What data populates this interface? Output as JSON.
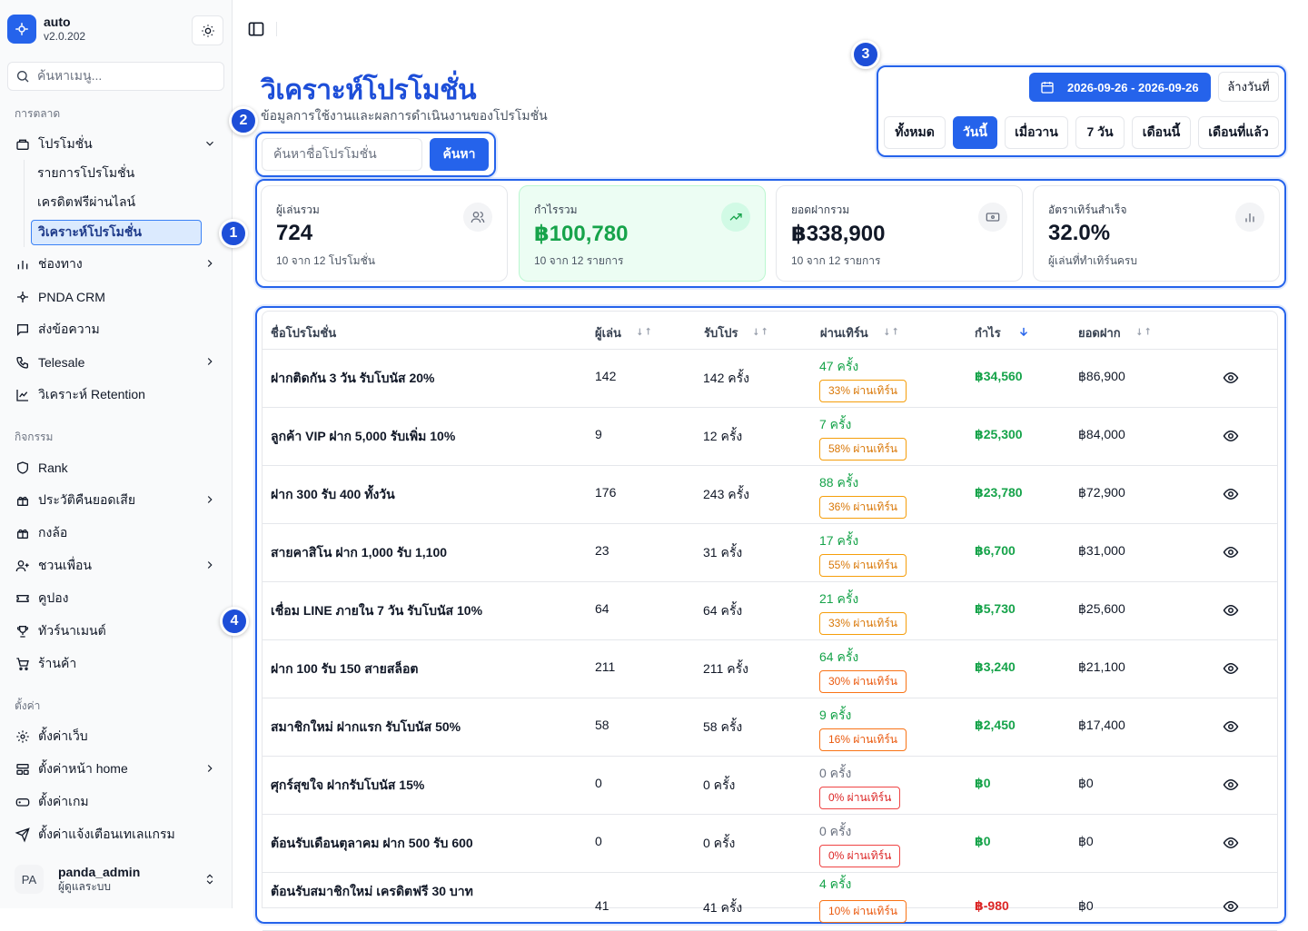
{
  "app": {
    "name": "auto",
    "version": "v2.0.202"
  },
  "sidebar": {
    "search_placeholder": "ค้นหาเมนู...",
    "group_marketing": "การตลาด",
    "group_activity": "กิจกรรม",
    "group_settings": "ตั้งค่า",
    "promo": {
      "label": "โปรโมชั่น",
      "children": [
        "รายการโปรโมชั่น",
        "เครดิตฟรีผ่านไลน์",
        "วิเคราะห์โปรโมชั่น"
      ]
    },
    "marketing_items": [
      "ช่องทาง",
      "PNDA CRM",
      "ส่งข้อความ",
      "Telesale",
      "วิเคราะห์ Retention"
    ],
    "activity_items": [
      "Rank",
      "ประวัติคืนยอดเสีย",
      "กงล้อ",
      "ชวนเพื่อน",
      "คูปอง",
      "ทัวร์นาเมนต์",
      "ร้านค้า"
    ],
    "settings_items": [
      "ตั้งค่าเว็บ",
      "ตั้งค่าหน้า home",
      "ตั้งค่าเกม",
      "ตั้งค่าแจ้งเตือนเทเลแกรม"
    ],
    "user": {
      "initials": "PA",
      "name": "panda_admin",
      "role": "ผู้ดูแลระบบ"
    }
  },
  "header": {
    "title": "วิเคราะห์โปรโมชั่น",
    "subtitle": "ข้อมูลการใช้งานและผลการดำเนินงานของโปรโมชั่น"
  },
  "annotations": {
    "b1": "1",
    "b2": "2",
    "b3": "3",
    "b4": "4"
  },
  "search": {
    "placeholder": "ค้นหาชื่อโปรโมชั่น",
    "button": "ค้นหา"
  },
  "date_filter": {
    "range": "2026-09-26 - 2026-09-26",
    "clear": "ล้างวันที่",
    "ranges": [
      "ทั้งหมด",
      "วันนี้",
      "เมื่อวาน",
      "7 วัน",
      "เดือนนี้",
      "เดือนที่แล้ว"
    ],
    "active": "วันนี้"
  },
  "stats": [
    {
      "label": "ผู้เล่นรวม",
      "value": "724",
      "sub": "10 จาก 12 โปรโมชั่น",
      "icon": "users-icon"
    },
    {
      "label": "กำไรรวม",
      "value": "฿100,780",
      "sub": "10 จาก 12 รายการ",
      "icon": "trending-up-icon"
    },
    {
      "label": "ยอดฝากรวม",
      "value": "฿338,900",
      "sub": "10 จาก 12 รายการ",
      "icon": "banknote-icon"
    },
    {
      "label": "อัตราเทิร์นสำเร็จ",
      "value": "32.0%",
      "sub": "ผู้เล่นที่ทำเทิร์นครบ",
      "icon": "bar-chart-icon"
    }
  ],
  "table": {
    "columns": [
      "ชื่อโปรโมชั่น",
      "ผู้เล่น",
      "รับโปร",
      "ผ่านเทิร์น",
      "กำไร",
      "ยอดฝาก"
    ],
    "rows": [
      {
        "name": "ฝากติดกัน 3 วัน รับโบนัส 20%",
        "players": "142",
        "claims": "142 ครั้ง",
        "pass": "47 ครั้ง",
        "pass_pct": "33% ผ่านเทิร์น",
        "profit": "฿34,560",
        "deposit": "฿86,900"
      },
      {
        "name": "ลูกค้า VIP ฝาก 5,000 รับเพิ่ม 10%",
        "players": "9",
        "claims": "12 ครั้ง",
        "pass": "7 ครั้ง",
        "pass_pct": "58% ผ่านเทิร์น",
        "profit": "฿25,300",
        "deposit": "฿84,000"
      },
      {
        "name": "ฝาก 300 รับ 400 ทั้งวัน",
        "players": "176",
        "claims": "243 ครั้ง",
        "pass": "88 ครั้ง",
        "pass_pct": "36% ผ่านเทิร์น",
        "profit": "฿23,780",
        "deposit": "฿72,900"
      },
      {
        "name": "สายคาสิโน ฝาก 1,000 รับ 1,100",
        "players": "23",
        "claims": "31 ครั้ง",
        "pass": "17 ครั้ง",
        "pass_pct": "55% ผ่านเทิร์น",
        "profit": "฿6,700",
        "deposit": "฿31,000"
      },
      {
        "name": "เชื่อม LINE ภายใน 7 วัน รับโบนัส 10%",
        "players": "64",
        "claims": "64 ครั้ง",
        "pass": "21 ครั้ง",
        "pass_pct": "33% ผ่านเทิร์น",
        "profit": "฿5,730",
        "deposit": "฿25,600"
      },
      {
        "name": "ฝาก 100 รับ 150 สายสล็อต",
        "players": "211",
        "claims": "211 ครั้ง",
        "pass": "64 ครั้ง",
        "pass_pct": "30% ผ่านเทิร์น",
        "profit": "฿3,240",
        "deposit": "฿21,100"
      },
      {
        "name": "สมาชิกใหม่ ฝากแรก รับโบนัส 50%",
        "players": "58",
        "claims": "58 ครั้ง",
        "pass": "9 ครั้ง",
        "pass_pct": "16% ผ่านเทิร์น",
        "profit": "฿2,450",
        "deposit": "฿17,400"
      },
      {
        "name": "ศุกร์สุขใจ ฝากรับโบนัส 15%",
        "players": "0",
        "claims": "0 ครั้ง",
        "pass": "0 ครั้ง",
        "pass_pct": "0% ผ่านเทิร์น",
        "profit": "฿0",
        "deposit": "฿0"
      },
      {
        "name": "ต้อนรับเดือนตุลาคม ฝาก 500 รับ 600",
        "players": "0",
        "claims": "0 ครั้ง",
        "pass": "0 ครั้ง",
        "pass_pct": "0% ผ่านเทิร์น",
        "profit": "฿0",
        "deposit": "฿0"
      },
      {
        "name": "ต้อนรับสมาชิกใหม่ เครดิตฟรี 30 บาท",
        "players": "41",
        "claims": "41 ครั้ง",
        "pass": "4 ครั้ง",
        "pass_pct": "10% ผ่านเทิร์น",
        "profit": "฿-980",
        "deposit": "฿0"
      }
    ]
  },
  "colors": {
    "accent": "#2563eb",
    "profit": "#16a34a",
    "loss": "#dc2626"
  }
}
